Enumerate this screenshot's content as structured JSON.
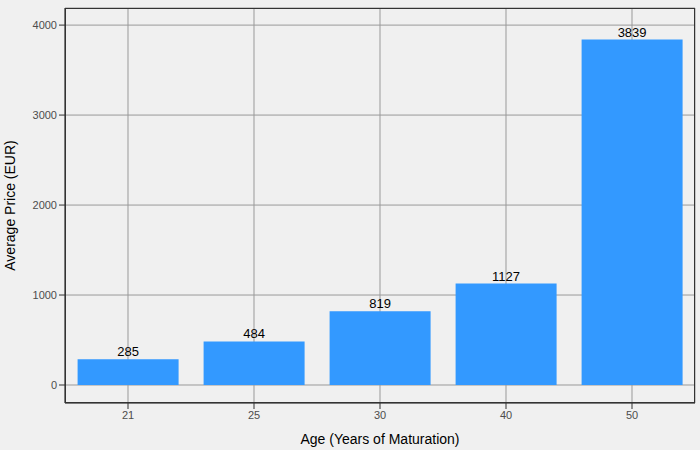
{
  "chart_data": {
    "type": "bar",
    "categories": [
      "21",
      "25",
      "30",
      "40",
      "50"
    ],
    "values": [
      285,
      484,
      819,
      1127,
      3839
    ],
    "color": "#3399ff",
    "x_label": "Age (Years of Maturation)",
    "y_label": "Average Price (EUR)",
    "ylim": [
      -200,
      4190
    ],
    "yticks": [
      0,
      1000,
      2000,
      3000,
      4000
    ],
    "grid": true,
    "data_labels": true
  }
}
